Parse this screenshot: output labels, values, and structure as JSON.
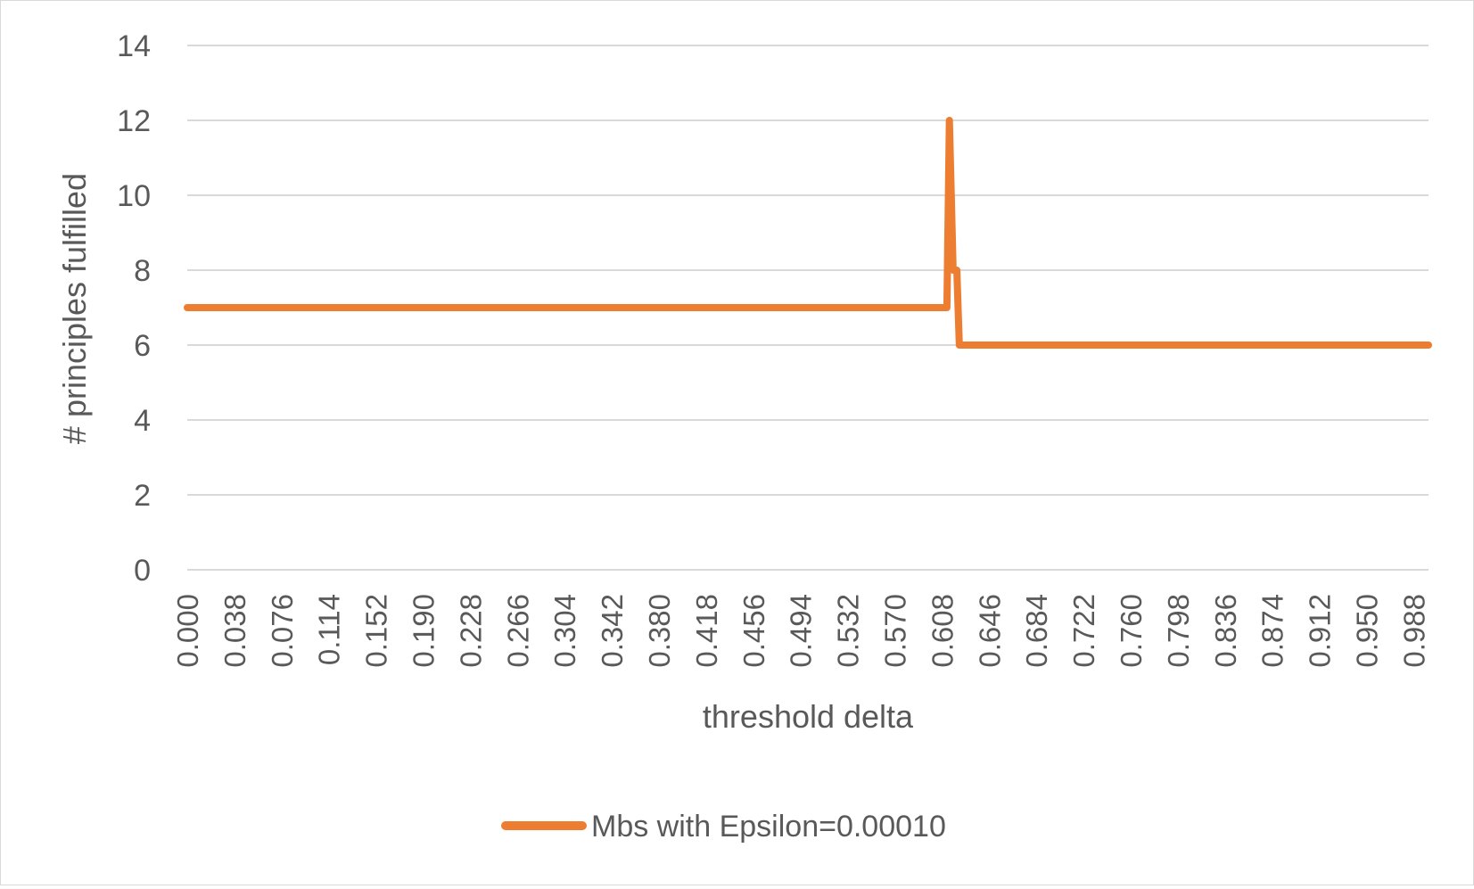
{
  "chart_data": {
    "type": "line",
    "title": "",
    "xlabel": "threshold delta",
    "ylabel": "# principles fulfilled",
    "ylim": [
      0,
      14
    ],
    "yticks": [
      "0",
      "2",
      "4",
      "6",
      "8",
      "10",
      "12",
      "14"
    ],
    "xlim": [
      0,
      1
    ],
    "xticks": [
      "0.000",
      "0.038",
      "0.076",
      "0.114",
      "0.152",
      "0.190",
      "0.228",
      "0.266",
      "0.304",
      "0.342",
      "0.380",
      "0.418",
      "0.456",
      "0.494",
      "0.532",
      "0.570",
      "0.608",
      "0.646",
      "0.684",
      "0.722",
      "0.760",
      "0.798",
      "0.836",
      "0.874",
      "0.912",
      "0.950",
      "0.988"
    ],
    "grid": "horizontal",
    "legend": "bottom",
    "series": [
      {
        "name": "Mbs with Epsilon=0.00010",
        "color": "#ed7d31",
        "points": [
          [
            0.0,
            7
          ],
          [
            0.612,
            7
          ],
          [
            0.614,
            12
          ],
          [
            0.617,
            8
          ],
          [
            0.62,
            8
          ],
          [
            0.622,
            6
          ],
          [
            1.0,
            6
          ]
        ]
      }
    ]
  }
}
